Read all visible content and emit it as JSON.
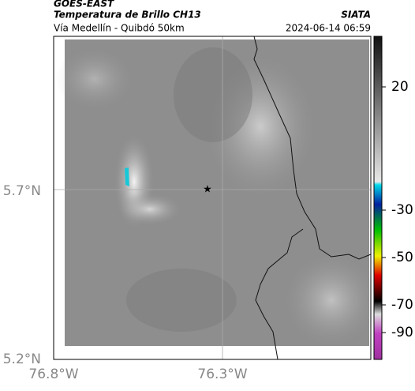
{
  "header": {
    "source": "GOES-EAST",
    "product": "Temperatura de Brillo CH13",
    "org": "SIATA",
    "route": "Vía Medellín - Quibdó 50km",
    "timestamp": "2024-06-14 06:59"
  },
  "map": {
    "lat_labels": [
      "5.7°N",
      "5.2°N"
    ],
    "lon_labels": [
      "76.8°W",
      "76.3°W"
    ]
  },
  "colorbar": {
    "tick_labels": [
      "20",
      "-30",
      "-50",
      "-70",
      "-90"
    ]
  }
}
